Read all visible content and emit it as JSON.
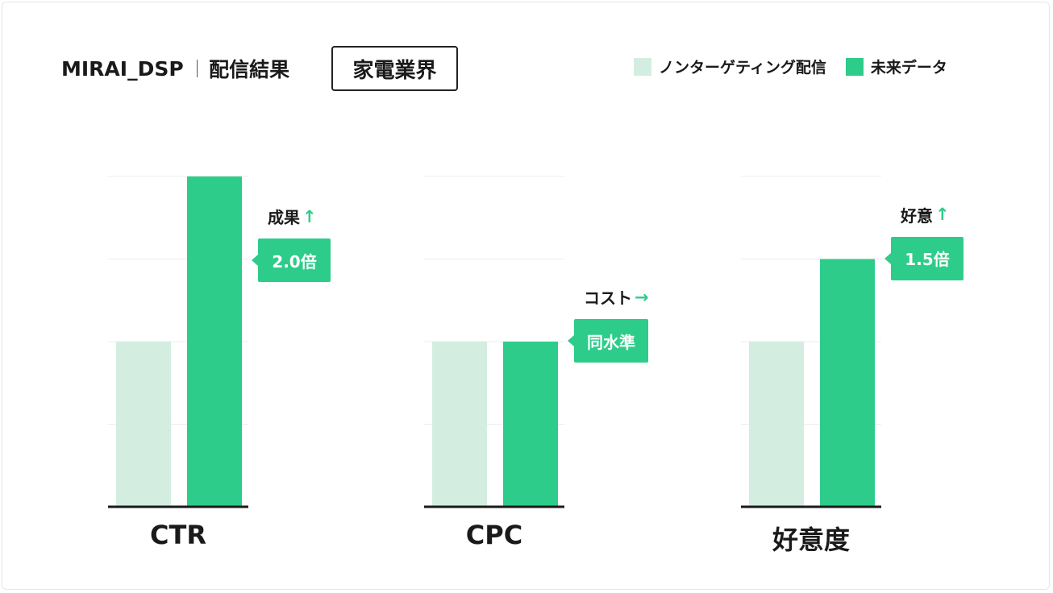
{
  "header": {
    "brand": "MIRAI_DSP",
    "subtitle": "配信結果",
    "industry": "家電業界"
  },
  "legend": {
    "items": [
      {
        "label": "ノンターゲティング配信",
        "color": "#d3eee0"
      },
      {
        "label": "未来データ",
        "color": "#2ecc8a"
      }
    ]
  },
  "chart_data": {
    "type": "bar",
    "categories": [
      "CTR",
      "CPC",
      "好意度"
    ],
    "series": [
      {
        "name": "ノンターゲティング配信",
        "values": [
          1.0,
          1.0,
          1.0
        ]
      },
      {
        "name": "未来データ",
        "values": [
          2.0,
          1.0,
          1.5
        ]
      }
    ],
    "ylim": [
      0,
      2.0
    ],
    "grid": true,
    "legend_position": "top-right",
    "annotations": [
      {
        "category": "CTR",
        "label": "成果",
        "arrow": "↑",
        "value_text": "2.0倍"
      },
      {
        "category": "CPC",
        "label": "コスト",
        "arrow": "→",
        "value_text": "同水準"
      },
      {
        "category": "好意度",
        "label": "好意",
        "arrow": "↑",
        "value_text": "1.5倍"
      }
    ]
  },
  "colors": {
    "baseline_bar": "#d3eee0",
    "mirai_bar": "#2ecc8a",
    "axis": "#1a1a1a",
    "grid": "#ececec"
  }
}
